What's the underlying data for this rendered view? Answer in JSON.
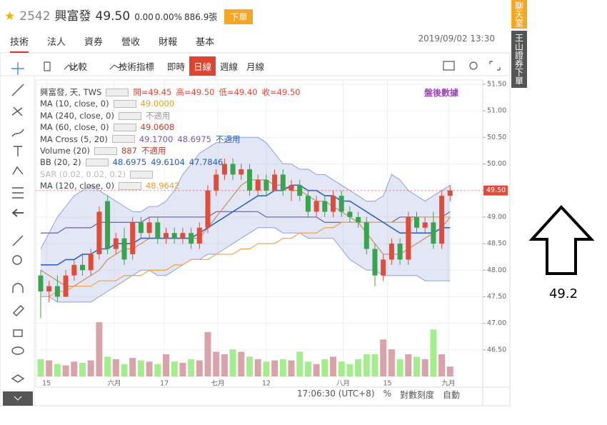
{
  "header": {
    "code": "2542",
    "name": "興富發",
    "price": "49.50",
    "change": "0.00",
    "change_pct": "0.00%",
    "volume": "886.9張",
    "order_button": "下單"
  },
  "tabs": [
    "技術",
    "法人",
    "資券",
    "營收",
    "財報",
    "基本"
  ],
  "datetime": "2019/09/02 13:30",
  "toolbar": {
    "compare": "比較",
    "indicators": "技術指標",
    "intervals": [
      "即時",
      "日線",
      "週線",
      "月線"
    ]
  },
  "side": {
    "chat": "聊天室",
    "order": "王山證券下單"
  },
  "after_hours": "盤後數據",
  "legend": [
    [
      "興富發, 天, TWS",
      "開=49.45",
      "高=49.50",
      "低=49.40",
      "收=49.50"
    ],
    [
      "MA (10, close, 0)",
      "49.0000"
    ],
    [
      "MA (240, close, 0)",
      "不適用"
    ],
    [
      "MA (60, close, 0)",
      "49.0608"
    ],
    [
      "MA Cross (5, 20)",
      "49.1700",
      "48.6975",
      "不適用"
    ],
    [
      "Volume (20)",
      "887",
      "不適用"
    ],
    [
      "BB (20, 2)",
      "48.6975",
      "49.6104",
      "47.7846"
    ],
    [
      "SAR (0.02, 0.02, 0.2)"
    ],
    [
      "MA (120, close, 0)",
      "48.9642"
    ]
  ],
  "bottom": {
    "time": "17:06:30 (UTC+8)",
    "percent": "%",
    "log": "對數刻度",
    "auto": "自動"
  },
  "annotation": "49.2",
  "chart_data": {
    "type": "candlestick",
    "up_color": "#e04b3a",
    "down_color": "#3aa34e",
    "volume_up_color": "#d9a3aa",
    "volume_down_color": "#a3ee8c",
    "last_price": {
      "value": 49.5,
      "label": "49.50"
    },
    "ylim": [
      46.0,
      51.58
    ],
    "yticks": [
      {
        "value": 51.5,
        "label": "51.50"
      },
      {
        "value": 51,
        "label": "51.00"
      },
      {
        "value": 50.5,
        "label": "50.50"
      },
      {
        "value": 50,
        "label": "50.00"
      },
      {
        "value": 49.5,
        "label": "49.50"
      },
      {
        "value": 49,
        "label": "49.00"
      },
      {
        "value": 48.5,
        "label": "48.50"
      },
      {
        "value": 48,
        "label": "48.00"
      },
      {
        "value": 47.5,
        "label": "47.50"
      },
      {
        "value": 47,
        "label": "47.00"
      },
      {
        "value": 46.5,
        "label": "46.50"
      }
    ],
    "xticks": [
      {
        "value": 0.7,
        "label": "15"
      },
      {
        "value": 8.8,
        "label": "六月"
      },
      {
        "value": 14.8,
        "label": "17"
      },
      {
        "value": 21.2,
        "label": "七月"
      },
      {
        "value": 27,
        "label": "12"
      },
      {
        "value": 36.2,
        "label": "八月"
      },
      {
        "value": 41.5,
        "label": "15"
      },
      {
        "value": 48.8,
        "label": "九月"
      }
    ],
    "open": [
      47.9,
      47.6,
      47.7,
      47.5,
      47.9,
      48.1,
      48.0,
      48.3,
      49.3,
      48.4,
      48.6,
      48.3,
      48.9,
      48.7,
      48.9,
      48.6,
      48.7,
      48.6,
      48.7,
      48.5,
      48.8,
      49.5,
      49.8,
      50.0,
      49.8,
      49.9,
      49.5,
      49.7,
      49.5,
      49.8,
      49.5,
      49.6,
      49.4,
      49.1,
      49.3,
      49.1,
      49.4,
      49.1,
      49.0,
      48.9,
      48.4,
      47.9,
      48.2,
      48.5,
      48.2,
      49.0,
      48.8,
      48.9,
      48.5,
      49.4
    ],
    "high": [
      48.0,
      47.8,
      47.9,
      48.0,
      48.2,
      48.3,
      48.4,
      49.2,
      49.4,
      48.7,
      48.8,
      49.0,
      49.0,
      49.0,
      49.0,
      48.8,
      48.8,
      48.8,
      48.8,
      48.9,
      49.6,
      49.9,
      50.1,
      50.1,
      50.0,
      50.0,
      49.8,
      49.8,
      49.9,
      49.9,
      49.7,
      49.7,
      49.5,
      49.4,
      49.4,
      49.5,
      49.5,
      49.2,
      49.1,
      49.0,
      48.5,
      48.3,
      48.6,
      48.6,
      49.1,
      49.1,
      49.0,
      49.1,
      49.5,
      49.6
    ],
    "low": [
      47.1,
      47.4,
      47.4,
      47.5,
      47.8,
      47.9,
      47.9,
      48.2,
      48.3,
      48.3,
      48.1,
      48.2,
      48.6,
      48.6,
      48.5,
      48.5,
      48.5,
      48.5,
      48.4,
      48.4,
      48.7,
      49.4,
      49.7,
      49.7,
      49.7,
      49.4,
      49.4,
      49.4,
      49.5,
      49.4,
      49.3,
      49.3,
      49.0,
      49.0,
      49.0,
      49.0,
      49.0,
      48.9,
      48.8,
      48.3,
      47.7,
      47.8,
      48.1,
      48.1,
      48.1,
      48.7,
      48.7,
      48.4,
      48.4,
      49.3
    ],
    "close": [
      47.6,
      47.7,
      47.5,
      47.9,
      48.1,
      48.0,
      48.3,
      49.1,
      48.4,
      48.6,
      48.2,
      48.9,
      48.7,
      48.9,
      48.6,
      48.7,
      48.6,
      48.7,
      48.5,
      48.8,
      49.5,
      49.8,
      50.0,
      49.8,
      49.9,
      49.5,
      49.7,
      49.5,
      49.8,
      49.5,
      49.6,
      49.4,
      49.1,
      49.3,
      49.1,
      49.4,
      49.1,
      49.0,
      48.9,
      48.4,
      47.9,
      48.2,
      48.5,
      48.2,
      49.0,
      48.8,
      48.9,
      48.5,
      49.4,
      49.5
    ],
    "volume": [
      700,
      650,
      500,
      450,
      600,
      550,
      650,
      2200,
      800,
      700,
      500,
      750,
      650,
      600,
      500,
      900,
      600,
      550,
      700,
      650,
      1800,
      1000,
      900,
      1100,
      1000,
      800,
      700,
      600,
      650,
      700,
      650,
      1000,
      600,
      500,
      700,
      800,
      600,
      500,
      700,
      900,
      900,
      1500,
      1100,
      700,
      900,
      800,
      700,
      1900,
      900,
      400
    ],
    "bands": {
      "color": "#8fa0d8",
      "upper": [
        48.4,
        48.7,
        49.0,
        49.2,
        49.4,
        49.5,
        49.6,
        49.5,
        49.4,
        49.3,
        49.2,
        49.1,
        49.1,
        49.2,
        49.2,
        49.3,
        49.5,
        49.8,
        50.0,
        50.2,
        50.3,
        50.4,
        50.4,
        50.5,
        50.5,
        50.5,
        50.5,
        50.4,
        50.2,
        50.0,
        50.0,
        49.9,
        49.9,
        49.8,
        49.8,
        49.7,
        49.6,
        49.5,
        49.4,
        49.3,
        49.3,
        49.4,
        49.8,
        49.7,
        49.5,
        49.4,
        49.3,
        49.4,
        49.5,
        49.6
      ],
      "lower": [
        47.5,
        47.5,
        47.4,
        47.4,
        47.4,
        47.4,
        47.4,
        47.5,
        47.6,
        47.7,
        47.8,
        47.9,
        48.0,
        48.0,
        47.9,
        47.9,
        48.0,
        48.1,
        48.2,
        48.2,
        48.3,
        48.3,
        48.4,
        48.5,
        48.6,
        48.7,
        48.8,
        48.8,
        48.8,
        48.7,
        48.7,
        48.7,
        48.6,
        48.6,
        48.6,
        48.6,
        48.4,
        48.2,
        48.1,
        48.0,
        48.0,
        47.9,
        47.9,
        47.9,
        47.9,
        47.9,
        47.8,
        47.8,
        47.8,
        47.8
      ]
    },
    "overlays": [
      {
        "color": "#7a6aa8",
        "values": [
          48.7,
          48.7,
          48.7,
          48.8,
          48.8,
          48.8,
          48.8,
          48.9,
          48.9,
          48.9,
          48.9,
          48.9,
          48.9,
          49.0,
          49.0,
          49.0,
          49.0,
          49.0,
          49.0,
          49.0,
          49.0,
          49.1,
          49.1,
          49.1,
          49.1,
          49.1,
          49.1,
          49.0,
          49.0,
          49.0,
          49.0,
          49.0,
          49.0,
          49.0,
          48.9,
          48.9,
          48.9,
          48.9,
          48.9,
          48.9,
          48.9,
          48.9,
          48.9,
          49.0,
          49.0,
          49.0,
          49.0,
          49.0,
          49.0,
          49.1
        ]
      },
      {
        "color": "#f0a850",
        "values": [
          47.5,
          47.5,
          47.6,
          47.6,
          47.7,
          47.7,
          47.7,
          47.8,
          47.8,
          47.8,
          47.9,
          47.9,
          47.9,
          48.0,
          48.0,
          48.0,
          48.1,
          48.1,
          48.2,
          48.2,
          48.2,
          48.3,
          48.3,
          48.3,
          48.4,
          48.4,
          48.5,
          48.5,
          48.5,
          48.6,
          48.6,
          48.7,
          48.7,
          48.7,
          48.8,
          48.8,
          48.9,
          48.9,
          48.9,
          48.9,
          48.9,
          48.9,
          48.9,
          48.9,
          48.9,
          49.0,
          49.0,
          49.0,
          49.0,
          49.0
        ]
      },
      {
        "color": "#c8956a",
        "values": [
          48.0,
          47.9,
          47.8,
          47.7,
          47.7,
          47.8,
          47.9,
          48.0,
          48.2,
          48.3,
          48.4,
          48.4,
          48.5,
          48.6,
          48.6,
          48.6,
          48.6,
          48.6,
          48.6,
          48.6,
          48.8,
          49.0,
          49.2,
          49.4,
          49.6,
          49.7,
          49.7,
          49.7,
          49.6,
          49.6,
          49.5,
          49.5,
          49.4,
          49.3,
          49.3,
          49.2,
          49.1,
          49.0,
          48.9,
          48.7,
          48.5,
          48.3,
          48.3,
          48.3,
          48.4,
          48.5,
          48.6,
          48.7,
          48.8,
          49.0
        ]
      },
      {
        "color": "#2f63c8",
        "values": [
          48.1,
          48.1,
          48.1,
          48.2,
          48.2,
          48.3,
          48.3,
          48.4,
          48.4,
          48.5,
          48.5,
          48.5,
          48.6,
          48.6,
          48.6,
          48.6,
          48.6,
          48.6,
          48.6,
          48.7,
          48.8,
          48.9,
          49.0,
          49.1,
          49.2,
          49.3,
          49.4,
          49.4,
          49.5,
          49.5,
          49.6,
          49.6,
          49.5,
          49.5,
          49.4,
          49.4,
          49.3,
          49.3,
          49.2,
          49.1,
          49.0,
          48.9,
          48.8,
          48.7,
          48.7,
          48.7,
          48.7,
          48.7,
          48.8,
          48.8
        ]
      }
    ]
  }
}
